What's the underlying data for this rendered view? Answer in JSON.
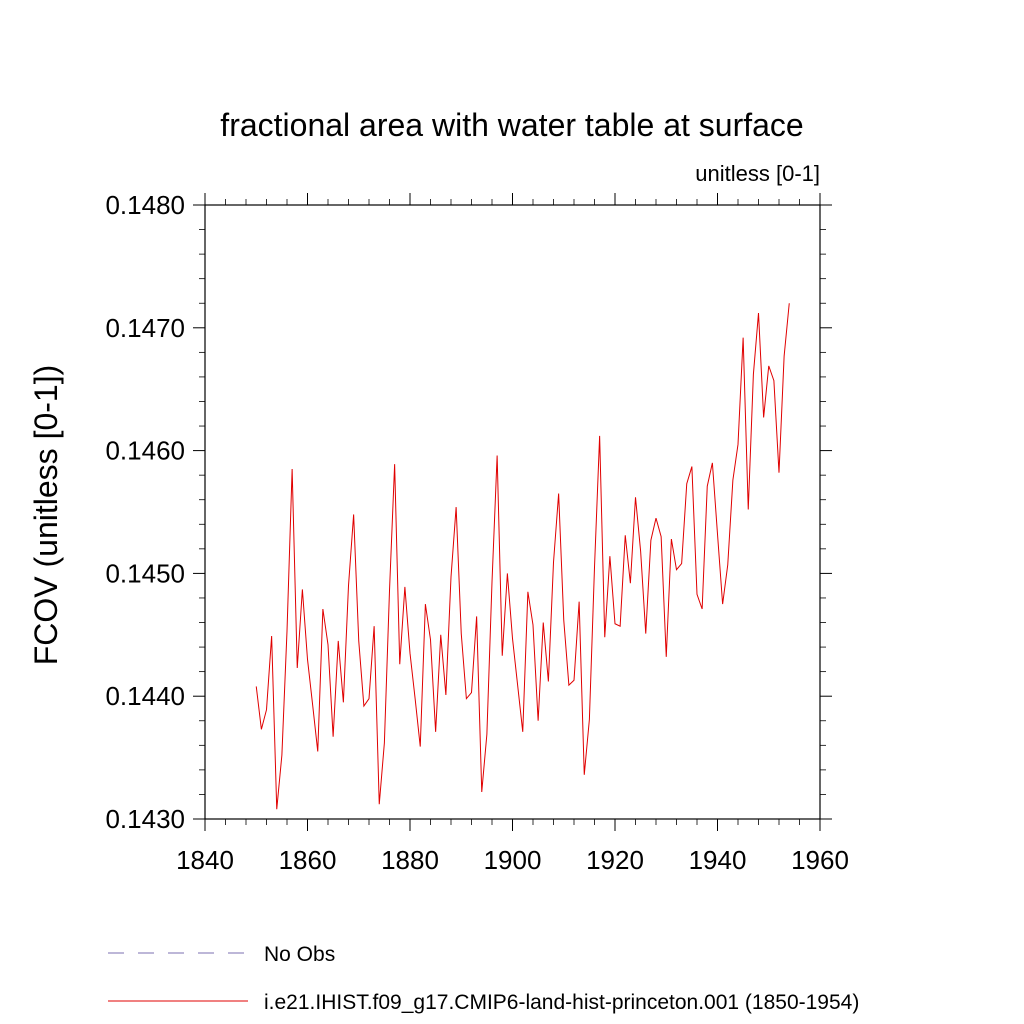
{
  "chart_data": {
    "type": "line",
    "title": "fractional area with water table at surface",
    "subtitle": "unitless [0-1]",
    "ylabel": "FCOV  (unitless [0-1])",
    "xlabel": "",
    "xlim": [
      1840,
      1960
    ],
    "ylim": [
      0.143,
      0.148
    ],
    "x_ticks": [
      1840,
      1860,
      1880,
      1900,
      1920,
      1940,
      1960
    ],
    "x_tick_labels": [
      "1840",
      "1860",
      "1880",
      "1900",
      "1920",
      "1940",
      "1960"
    ],
    "y_ticks": [
      0.143,
      0.144,
      0.145,
      0.146,
      0.147,
      0.148
    ],
    "y_tick_labels": [
      "0.1430",
      "0.1440",
      "0.1450",
      "0.1460",
      "0.1470",
      "0.1480"
    ],
    "grid": false,
    "legend_position": "bottom",
    "legend": [
      {
        "label": "No Obs",
        "color": "#7b6fb0",
        "style": "dashed"
      },
      {
        "label": "i.e21.IHIST.f09_g17.CMIP6-land-hist-princeton.001 (1850-1954)",
        "color": "#e00000",
        "style": "solid"
      }
    ],
    "series": [
      {
        "name": "i.e21.IHIST.f09_g17.CMIP6-land-hist-princeton.001 (1850-1954)",
        "color": "#e00000",
        "x_start": 1850,
        "values": [
          0.14408,
          0.14373,
          0.14389,
          0.14449,
          0.14308,
          0.14352,
          0.14453,
          0.14585,
          0.14423,
          0.14487,
          0.1443,
          0.14393,
          0.14355,
          0.14471,
          0.14442,
          0.14367,
          0.14445,
          0.14395,
          0.1449,
          0.14548,
          0.14445,
          0.14392,
          0.14398,
          0.14457,
          0.14312,
          0.14362,
          0.14486,
          0.14589,
          0.14426,
          0.14489,
          0.14435,
          0.14398,
          0.14359,
          0.14475,
          0.14446,
          0.14371,
          0.1445,
          0.14401,
          0.14497,
          0.14554,
          0.14451,
          0.14398,
          0.14403,
          0.14465,
          0.14322,
          0.14369,
          0.14493,
          0.14596,
          0.14433,
          0.145,
          0.14447,
          0.14409,
          0.14371,
          0.14485,
          0.14458,
          0.1438,
          0.1446,
          0.14412,
          0.14509,
          0.14565,
          0.14462,
          0.14409,
          0.14413,
          0.14477,
          0.14336,
          0.14381,
          0.14505,
          0.14612,
          0.14448,
          0.14514,
          0.14459,
          0.14457,
          0.14531,
          0.14492,
          0.14562,
          0.14518,
          0.14451,
          0.14527,
          0.14545,
          0.1453,
          0.14432,
          0.14528,
          0.14503,
          0.14508,
          0.14573,
          0.14587,
          0.14483,
          0.14471,
          0.14571,
          0.1459,
          0.14532,
          0.14475,
          0.14507,
          0.14576,
          0.14605,
          0.14692,
          0.14552,
          0.14662,
          0.14712,
          0.14627,
          0.14669,
          0.14657,
          0.14582,
          0.14677,
          0.1472
        ]
      }
    ]
  }
}
